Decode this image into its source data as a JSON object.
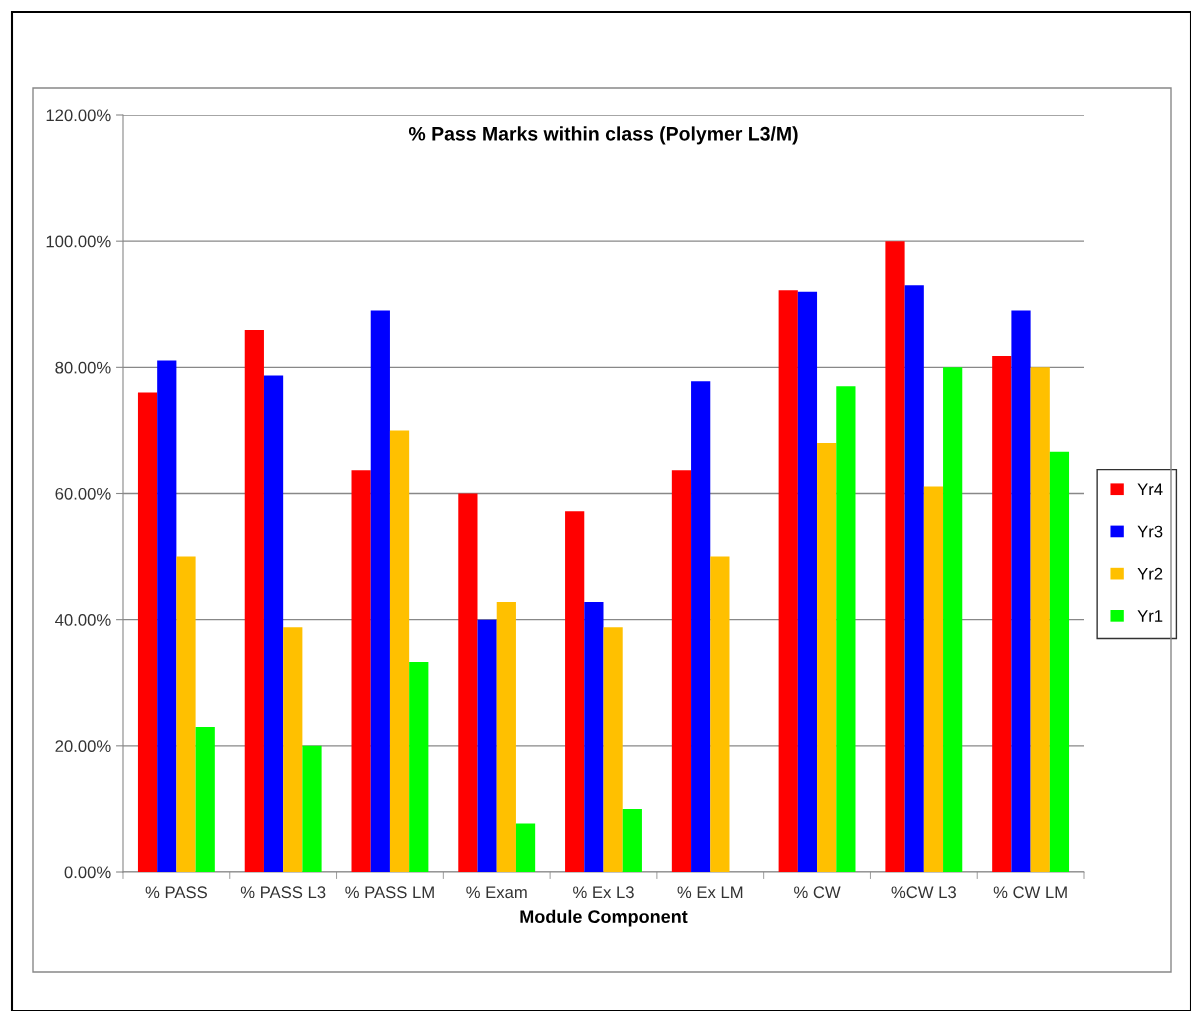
{
  "chart_data": {
    "type": "bar",
    "title": "% Pass Marks within class (Polymer L3/M)",
    "xlabel": "Module Component",
    "categories": [
      "% PASS",
      "% PASS L3",
      "% PASS LM",
      "% Exam",
      "% Ex L3",
      "% Ex LM",
      "% CW",
      "%CW L3",
      "% CW LM"
    ],
    "series": [
      {
        "name": "Yr4",
        "color": "#ff0000",
        "values": [
          76.0,
          85.9,
          63.7,
          60.0,
          57.2,
          63.7,
          92.2,
          100.0,
          81.8
        ]
      },
      {
        "name": "Yr3",
        "color": "#0000ff",
        "values": [
          81.1,
          78.7,
          89.0,
          40.0,
          42.8,
          77.8,
          92.0,
          93.0,
          89.0
        ]
      },
      {
        "name": "Yr2",
        "color": "#ffc000",
        "values": [
          50.0,
          38.8,
          70.0,
          42.8,
          38.8,
          50.0,
          68.0,
          61.1,
          80.0
        ]
      },
      {
        "name": "Yr1",
        "color": "#00ff00",
        "values": [
          23.0,
          20.0,
          33.3,
          7.7,
          10.0,
          null,
          77.0,
          80.0,
          66.6
        ]
      }
    ],
    "ylim": [
      0,
      120
    ],
    "yticks": [
      {
        "value": 0,
        "label": "0.00%"
      },
      {
        "value": 20,
        "label": "20.00%"
      },
      {
        "value": 40,
        "label": "40.00%"
      },
      {
        "value": 60,
        "label": "60.00%"
      },
      {
        "value": 80,
        "label": "80.00%"
      },
      {
        "value": 100,
        "label": "100.00%"
      },
      {
        "value": 120,
        "label": "120.00%"
      }
    ],
    "grid": "y",
    "legend": "right"
  }
}
